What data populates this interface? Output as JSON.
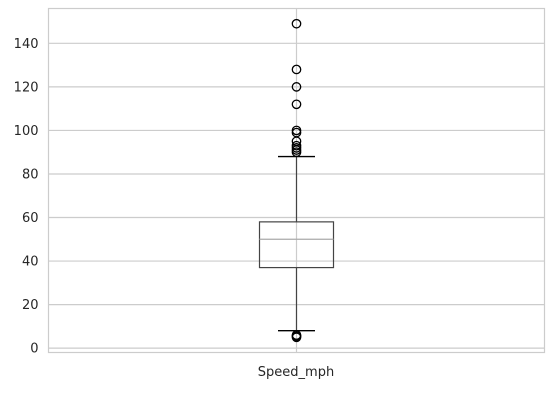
{
  "chart_data": {
    "type": "box",
    "categories": [
      "Speed_mph"
    ],
    "box": {
      "whisker_low": 8,
      "q1": 37,
      "median": 50,
      "q3": 58,
      "whisker_high": 88,
      "outliers": [
        5,
        5.5,
        6,
        90,
        91,
        92,
        93,
        95,
        99,
        100,
        112,
        120,
        128,
        149
      ]
    },
    "ylim": [
      -2,
      156
    ],
    "yticks": [
      0,
      20,
      40,
      60,
      80,
      100,
      120,
      140
    ],
    "grid": true,
    "colors": {
      "grid": "#cccccc",
      "box": "#444444",
      "median": "#aaaaaa",
      "outlier": "#000000",
      "axis_text": "#262626"
    }
  }
}
